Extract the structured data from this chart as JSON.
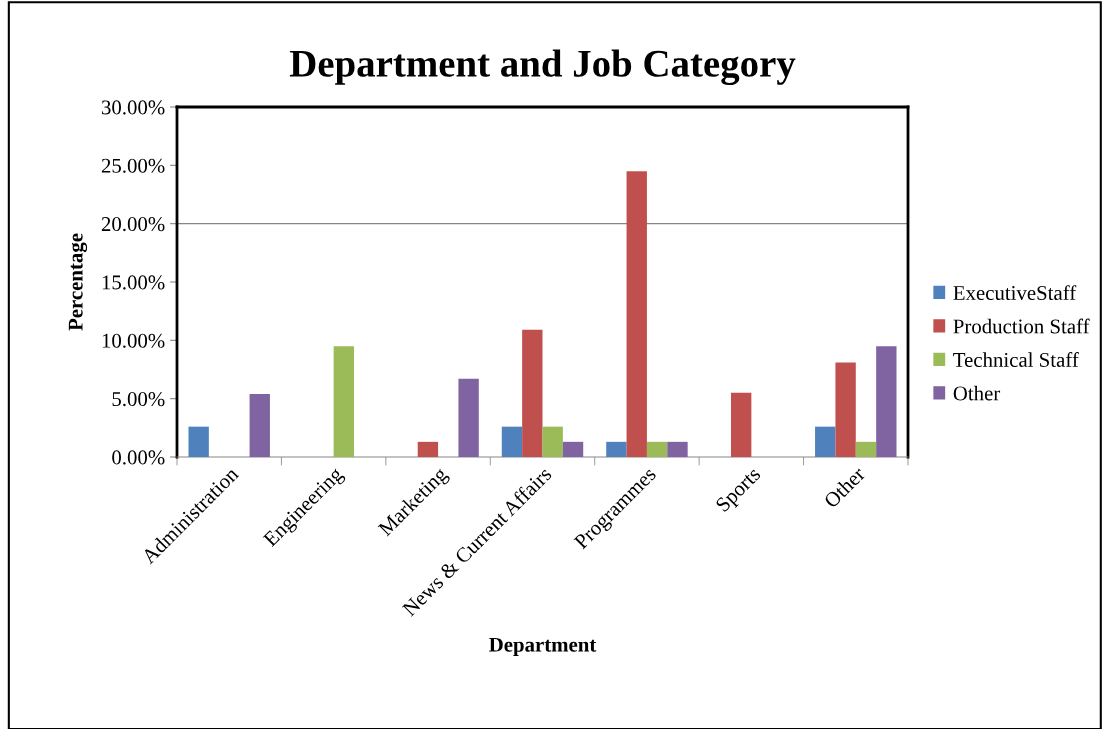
{
  "chart_data": {
    "type": "bar",
    "title": "Department and Job Category",
    "xlabel": "Department",
    "ylabel": "Percentage",
    "categories": [
      "Administration",
      "Engineering",
      "Marketing",
      "News & Current Affairs",
      "Programmes",
      "Sports",
      "Other"
    ],
    "series": [
      {
        "name": "ExecutiveStaff",
        "color": "#4f81bd",
        "values": [
          2.6,
          null,
          null,
          2.6,
          1.3,
          null,
          2.6
        ]
      },
      {
        "name": "Production Staff",
        "color": "#c0504d",
        "values": [
          null,
          null,
          1.3,
          10.9,
          24.5,
          5.5,
          8.1
        ]
      },
      {
        "name": "Technical Staff",
        "color": "#9bbb59",
        "values": [
          null,
          9.5,
          null,
          2.6,
          1.3,
          null,
          1.3
        ]
      },
      {
        "name": "Other",
        "color": "#8064a2",
        "values": [
          5.4,
          null,
          6.7,
          1.3,
          1.3,
          null,
          9.5
        ]
      }
    ],
    "ylim": [
      0,
      30
    ],
    "yticks": [
      {
        "value": 0,
        "label": "0.00%"
      },
      {
        "value": 5,
        "label": "5.00%"
      },
      {
        "value": 10,
        "label": "10.00%"
      },
      {
        "value": 15,
        "label": "15.00%"
      },
      {
        "value": 20,
        "label": "20.00%"
      },
      {
        "value": 25,
        "label": "25.00%"
      },
      {
        "value": 30,
        "label": "30.00%"
      }
    ],
    "ref_lines": [
      {
        "axis": "y",
        "value": 20,
        "color": "#868686"
      }
    ],
    "legend": "right"
  }
}
